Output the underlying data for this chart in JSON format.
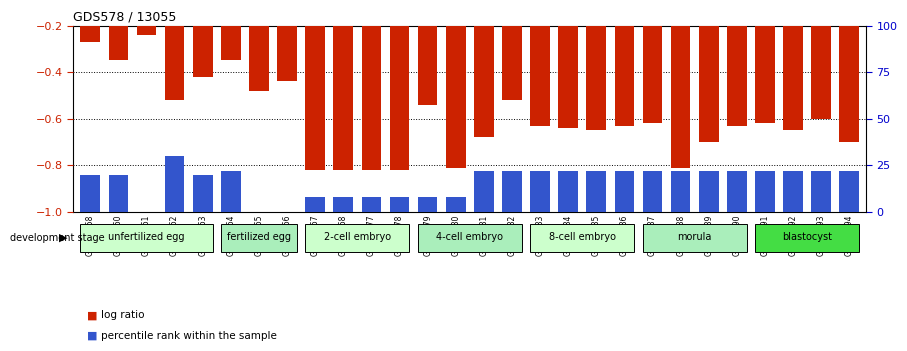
{
  "title": "GDS578 / 13055",
  "samples": [
    "GSM14658",
    "GSM14660",
    "GSM14661",
    "GSM14662",
    "GSM14663",
    "GSM14664",
    "GSM14665",
    "GSM14666",
    "GSM14667",
    "GSM14668",
    "GSM14677",
    "GSM14678",
    "GSM14679",
    "GSM14680",
    "GSM14681",
    "GSM14682",
    "GSM14683",
    "GSM14684",
    "GSM14685",
    "GSM14686",
    "GSM14687",
    "GSM14688",
    "GSM14689",
    "GSM14690",
    "GSM14691",
    "GSM14692",
    "GSM14693",
    "GSM14694"
  ],
  "log_ratio": [
    -0.27,
    -0.35,
    -0.24,
    -0.52,
    -0.42,
    -0.35,
    -0.48,
    -0.44,
    -0.82,
    -0.82,
    -0.82,
    -0.82,
    -0.54,
    -0.81,
    -0.68,
    -0.52,
    -0.63,
    -0.64,
    -0.65,
    -0.63,
    -0.62,
    -0.81,
    -0.7,
    -0.63,
    -0.62,
    -0.65,
    -0.6,
    -0.7
  ],
  "percentile_rank_pct": [
    20,
    20,
    0,
    30,
    20,
    22,
    0,
    0,
    8,
    8,
    8,
    8,
    8,
    8,
    22,
    22,
    22,
    22,
    22,
    22,
    22,
    22,
    22,
    22,
    22,
    22,
    22,
    22
  ],
  "stages": [
    {
      "label": "unfertilized egg",
      "start": 0,
      "end": 4,
      "color": "#ccffcc"
    },
    {
      "label": "fertilized egg",
      "start": 5,
      "end": 7,
      "color": "#aaeebb"
    },
    {
      "label": "2-cell embryo",
      "start": 8,
      "end": 11,
      "color": "#ccffcc"
    },
    {
      "label": "4-cell embryo",
      "start": 12,
      "end": 15,
      "color": "#aaeebb"
    },
    {
      "label": "8-cell embryo",
      "start": 16,
      "end": 19,
      "color": "#ccffcc"
    },
    {
      "label": "morula",
      "start": 20,
      "end": 23,
      "color": "#aaeebb"
    },
    {
      "label": "blastocyst",
      "start": 24,
      "end": 27,
      "color": "#44dd44"
    }
  ],
  "bar_color": "#cc2200",
  "rank_color": "#3355cc",
  "ymin": -1.0,
  "ymax": -0.2,
  "yticks_left": [
    -1.0,
    -0.8,
    -0.6,
    -0.4,
    -0.2
  ],
  "yticks_right": [
    0,
    25,
    50,
    75,
    100
  ],
  "bg_color": "#ffffff",
  "left_tick_color": "#cc2200",
  "right_tick_color": "#0000cc"
}
